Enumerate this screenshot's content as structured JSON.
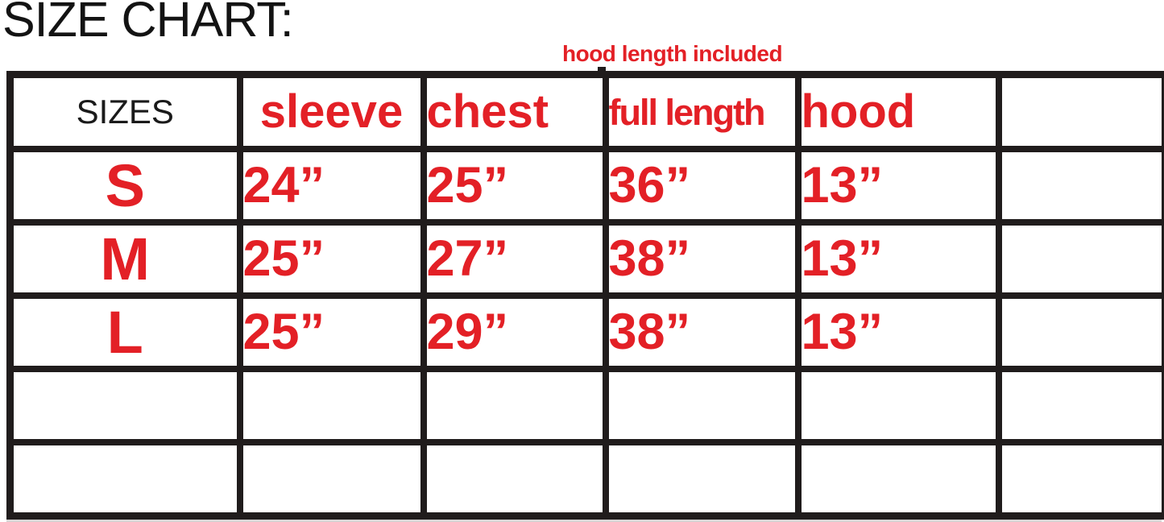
{
  "title": "SIZE CHART:",
  "note": "hood length included",
  "colors": {
    "accent_red": "#e32026",
    "border_black": "#201c1c",
    "background": "#ffffff"
  },
  "chart_data": {
    "type": "table",
    "title": "SIZE CHART:",
    "annotation": "hood length included",
    "columns": [
      "SIZES",
      "sleeve",
      "chest",
      "full length",
      "hood",
      ""
    ],
    "rows": [
      [
        "S",
        "24”",
        "25”",
        "36”",
        "13”",
        ""
      ],
      [
        "M",
        "25”",
        "27”",
        "38”",
        "13”",
        ""
      ],
      [
        "L",
        "25”",
        "29”",
        "38”",
        "13”",
        ""
      ],
      [
        "",
        "",
        "",
        "",
        "",
        ""
      ],
      [
        "",
        "",
        "",
        "",
        "",
        ""
      ]
    ]
  }
}
